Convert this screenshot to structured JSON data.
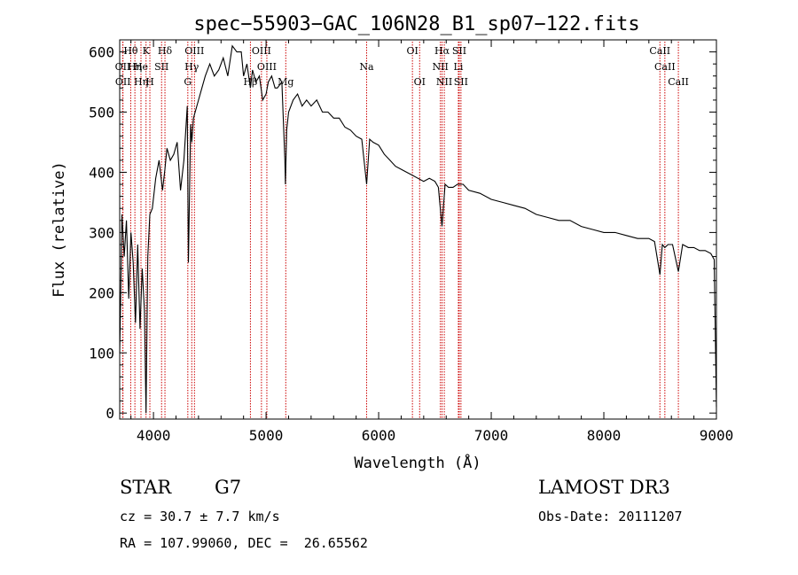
{
  "chart_data": {
    "type": "line",
    "title": "spec−55903−GAC_106N28_B1_sp07−122.fits",
    "xlabel": "Wavelength (Å)",
    "ylabel": "Flux (relative)",
    "xlim": [
      3700,
      9000
    ],
    "ylim": [
      -10,
      620
    ],
    "xticks": [
      4000,
      5000,
      6000,
      7000,
      8000,
      9000
    ],
    "yticks": [
      0,
      100,
      200,
      300,
      400,
      500,
      600
    ],
    "grid": false,
    "line_color": "#000000",
    "marker_color": "#cc0000",
    "series": [
      {
        "x": [
          3700,
          3710,
          3720,
          3740,
          3760,
          3780,
          3800,
          3820,
          3840,
          3860,
          3880,
          3900,
          3920,
          3934,
          3950,
          3968,
          3990,
          4020,
          4050,
          4080,
          4102,
          4120,
          4150,
          4180,
          4210,
          4240,
          4270,
          4300,
          4310,
          4330,
          4340,
          4355,
          4370,
          4400,
          4430,
          4460,
          4500,
          4540,
          4580,
          4620,
          4660,
          4700,
          4740,
          4780,
          4800,
          4830,
          4861,
          4880,
          4910,
          4940,
          4970,
          5000,
          5020,
          5050,
          5080,
          5100,
          5140,
          5167,
          5172,
          5183,
          5200,
          5240,
          5280,
          5320,
          5360,
          5400,
          5450,
          5500,
          5550,
          5600,
          5650,
          5700,
          5750,
          5800,
          5850,
          5893,
          5920,
          5950,
          6000,
          6050,
          6100,
          6150,
          6200,
          6250,
          6300,
          6350,
          6400,
          6450,
          6500,
          6530,
          6563,
          6590,
          6620,
          6660,
          6700,
          6750,
          6800,
          6900,
          7000,
          7100,
          7200,
          7300,
          7400,
          7500,
          7600,
          7700,
          7800,
          7900,
          8000,
          8100,
          8200,
          8300,
          8400,
          8450,
          8498,
          8520,
          8542,
          8570,
          8610,
          8662,
          8700,
          8750,
          8800,
          8850,
          8900,
          8950,
          8980,
          9000
        ],
        "y": [
          100,
          210,
          330,
          260,
          320,
          190,
          300,
          250,
          150,
          280,
          140,
          240,
          170,
          0,
          260,
          330,
          340,
          390,
          420,
          370,
          405,
          440,
          420,
          430,
          450,
          370,
          420,
          510,
          250,
          480,
          450,
          490,
          500,
          520,
          540,
          560,
          580,
          560,
          570,
          590,
          560,
          610,
          600,
          600,
          560,
          580,
          540,
          570,
          550,
          560,
          520,
          530,
          550,
          560,
          540,
          540,
          550,
          420,
          380,
          470,
          500,
          520,
          530,
          510,
          520,
          510,
          520,
          500,
          500,
          490,
          490,
          475,
          470,
          460,
          455,
          380,
          455,
          450,
          445,
          430,
          420,
          410,
          405,
          400,
          395,
          390,
          385,
          390,
          385,
          375,
          310,
          380,
          375,
          375,
          380,
          380,
          370,
          365,
          355,
          350,
          345,
          340,
          330,
          325,
          320,
          320,
          310,
          305,
          300,
          300,
          295,
          290,
          290,
          285,
          230,
          280,
          275,
          280,
          280,
          235,
          280,
          275,
          275,
          270,
          270,
          265,
          255,
          10
        ]
      }
    ],
    "annotations": [
      {
        "label": "Hθ",
        "wavelength": 3798,
        "row": 0
      },
      {
        "label": "OII",
        "wavelength": 3727,
        "row": 1
      },
      {
        "label": "OII",
        "wavelength": 3729,
        "row": 2
      },
      {
        "label": "Hη",
        "wavelength": 3835,
        "row": 1
      },
      {
        "label": "He",
        "wavelength": 3889,
        "row": 1
      },
      {
        "label": "Hη",
        "wavelength": 3890,
        "row": 2
      },
      {
        "label": "K",
        "wavelength": 3934,
        "row": 0
      },
      {
        "label": "H",
        "wavelength": 3968,
        "row": 2
      },
      {
        "label": "SII",
        "wavelength": 4072,
        "row": 1
      },
      {
        "label": "Hδ",
        "wavelength": 4102,
        "row": 0
      },
      {
        "label": "OIII",
        "wavelength": 4364,
        "row": 0
      },
      {
        "label": "Hγ",
        "wavelength": 4340,
        "row": 1
      },
      {
        "label": "G",
        "wavelength": 4305,
        "row": 2
      },
      {
        "label": "OIII",
        "wavelength": 4959,
        "row": 0
      },
      {
        "label": "OIII",
        "wavelength": 5007,
        "row": 1
      },
      {
        "label": "Hβ",
        "wavelength": 4861,
        "row": 2
      },
      {
        "label": "Mg",
        "wavelength": 5175,
        "row": 2
      },
      {
        "label": "Na",
        "wavelength": 5893,
        "row": 1
      },
      {
        "label": "OI",
        "wavelength": 6300,
        "row": 0
      },
      {
        "label": "OI",
        "wavelength": 6364,
        "row": 2
      },
      {
        "label": "Hα",
        "wavelength": 6563,
        "row": 0
      },
      {
        "label": "NII",
        "wavelength": 6548,
        "row": 1
      },
      {
        "label": "NII",
        "wavelength": 6583,
        "row": 2
      },
      {
        "label": "SII",
        "wavelength": 6716,
        "row": 0
      },
      {
        "label": "Li",
        "wavelength": 6708,
        "row": 1
      },
      {
        "label": "SII",
        "wavelength": 6731,
        "row": 2
      },
      {
        "label": "CaII",
        "wavelength": 8498,
        "row": 0
      },
      {
        "label": "CaII",
        "wavelength": 8542,
        "row": 1
      },
      {
        "label": "CaII",
        "wavelength": 8662,
        "row": 2
      }
    ]
  },
  "info": {
    "object_class": "STAR",
    "subclass": "G7",
    "survey": "LAMOST DR3",
    "cz": "cz = 30.7 ± 7.7 km/s",
    "obs_date": "Obs-Date: 20111207",
    "radec": "RA = 107.99060, DEC =  26.65562"
  }
}
